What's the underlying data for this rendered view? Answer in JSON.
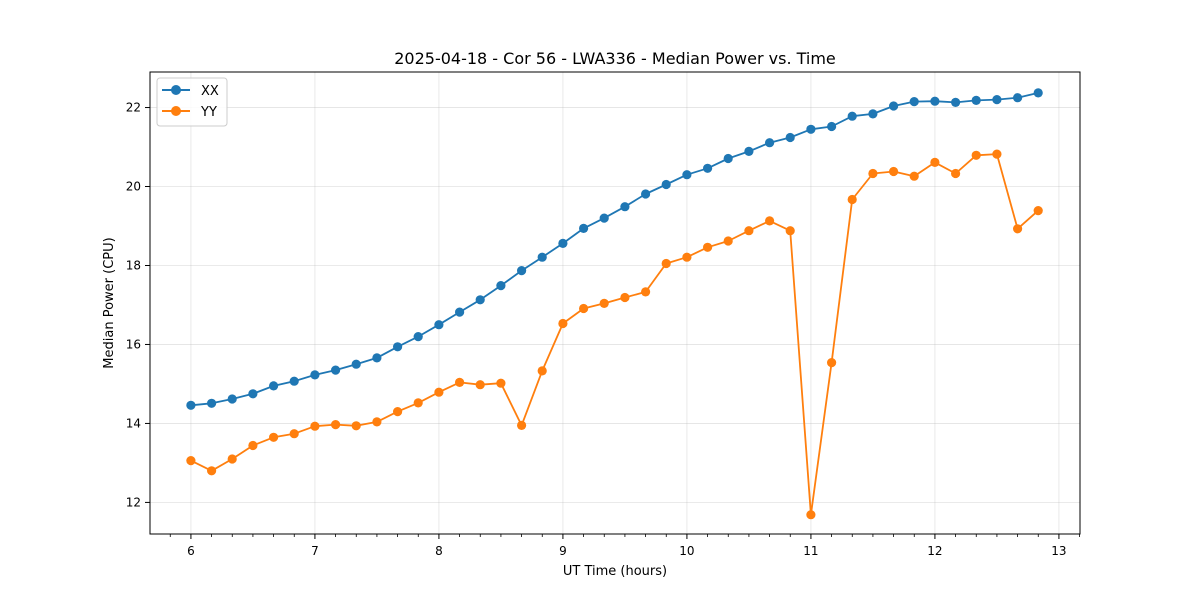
{
  "chart_data": {
    "type": "line",
    "title": "2025-04-18 - Cor 56 - LWA336 - Median Power vs. Time",
    "xlabel": "UT Time (hours)",
    "ylabel": "Median Power (CPU)",
    "xlim": [
      5.67,
      13.17
    ],
    "ylim": [
      11.2,
      22.9
    ],
    "xticks": [
      6,
      7,
      8,
      9,
      10,
      11,
      12,
      13
    ],
    "yticks": [
      12,
      14,
      16,
      18,
      20,
      22
    ],
    "grid": true,
    "legend_position": "top-left",
    "x": [
      6.0,
      6.167,
      6.333,
      6.5,
      6.667,
      6.833,
      7.0,
      7.167,
      7.333,
      7.5,
      7.667,
      7.833,
      8.0,
      8.167,
      8.333,
      8.5,
      8.667,
      8.833,
      9.0,
      9.167,
      9.333,
      9.5,
      9.667,
      9.833,
      10.0,
      10.167,
      10.333,
      10.5,
      10.667,
      10.833,
      11.0,
      11.167,
      11.333,
      11.5,
      11.667,
      11.833,
      12.0,
      12.167,
      12.333,
      12.5,
      12.667,
      12.833
    ],
    "series": [
      {
        "name": "XX",
        "color": "#1f77b4",
        "values": [
          14.46,
          14.51,
          14.62,
          14.75,
          14.95,
          15.07,
          15.23,
          15.35,
          15.5,
          15.66,
          15.94,
          16.2,
          16.5,
          16.82,
          17.13,
          17.49,
          17.87,
          18.21,
          18.56,
          18.94,
          19.2,
          19.49,
          19.81,
          20.05,
          20.3,
          20.46,
          20.71,
          20.89,
          21.11,
          21.24,
          21.45,
          21.52,
          21.78,
          21.84,
          22.04,
          22.15,
          22.16,
          22.13,
          22.18,
          22.2,
          22.25,
          22.37
        ]
      },
      {
        "name": "YY",
        "color": "#ff7f0e",
        "values": [
          13.06,
          12.8,
          13.1,
          13.44,
          13.65,
          13.74,
          13.93,
          13.97,
          13.94,
          14.04,
          14.3,
          14.52,
          14.79,
          15.04,
          14.98,
          15.02,
          13.95,
          15.33,
          16.53,
          16.91,
          17.04,
          17.19,
          17.33,
          18.05,
          18.21,
          18.46,
          18.62,
          18.88,
          19.13,
          18.88,
          11.69,
          15.54,
          19.67,
          20.33,
          20.38,
          20.26,
          20.61,
          20.33,
          20.79,
          20.82,
          18.93,
          19.39
        ]
      }
    ]
  }
}
